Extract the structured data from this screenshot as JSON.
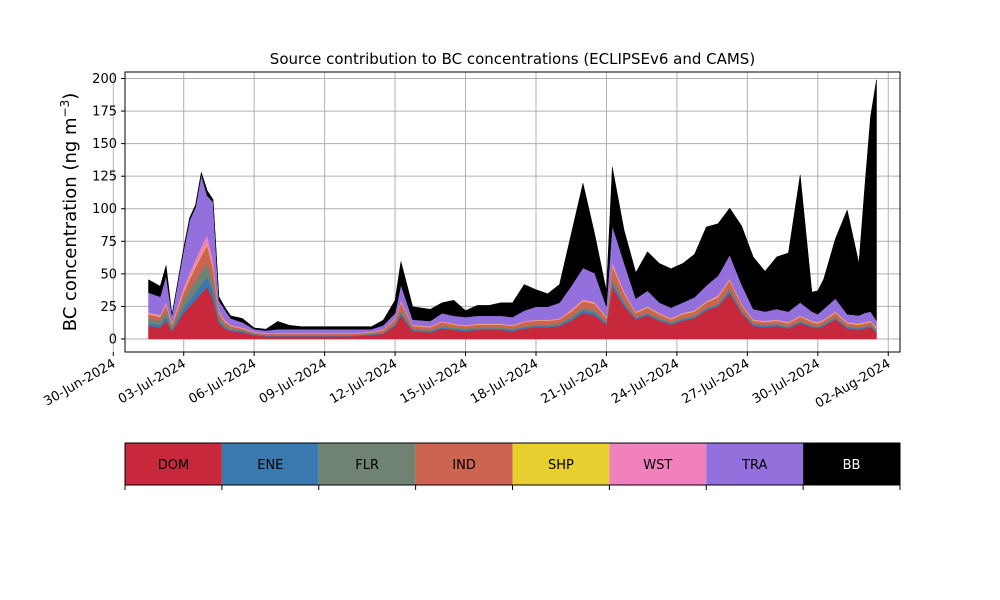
{
  "chart_data": {
    "type": "area",
    "stacked": true,
    "title": "Source contribution to BC concentrations (ECLIPSEv6 and CAMS)",
    "ylabel_main": "BC concentration (ng m",
    "ylabel_sup": "−3",
    "ylabel_close": ")",
    "xlabel": "",
    "ylim": [
      -10,
      205
    ],
    "xlim": [
      "2024-06-30T12:00",
      "2024-08-02T12:00"
    ],
    "grid": true,
    "x_ticks": [
      "30-Jun-2024",
      "03-Jul-2024",
      "06-Jul-2024",
      "09-Jul-2024",
      "12-Jul-2024",
      "15-Jul-2024",
      "18-Jul-2024",
      "21-Jul-2024",
      "24-Jul-2024",
      "27-Jul-2024",
      "30-Jul-2024",
      "02-Aug-2024"
    ],
    "y_ticks": [
      0,
      25,
      50,
      75,
      100,
      125,
      150,
      175,
      200
    ],
    "legend_placement": "below",
    "x": [
      "2024-07-01T12:00",
      "2024-07-02T00:00",
      "2024-07-02T06:00",
      "2024-07-02T12:00",
      "2024-07-03T00:00",
      "2024-07-03T06:00",
      "2024-07-03T12:00",
      "2024-07-03T18:00",
      "2024-07-04T00:00",
      "2024-07-04T06:00",
      "2024-07-04T12:00",
      "2024-07-04T18:00",
      "2024-07-05T00:00",
      "2024-07-05T12:00",
      "2024-07-06T00:00",
      "2024-07-06T12:00",
      "2024-07-07T00:00",
      "2024-07-07T12:00",
      "2024-07-08T00:00",
      "2024-07-09T00:00",
      "2024-07-10T00:00",
      "2024-07-11T00:00",
      "2024-07-11T12:00",
      "2024-07-12T00:00",
      "2024-07-12T06:00",
      "2024-07-12T18:00",
      "2024-07-13T12:00",
      "2024-07-14T00:00",
      "2024-07-14T12:00",
      "2024-07-15T00:00",
      "2024-07-15T12:00",
      "2024-07-16T00:00",
      "2024-07-16T12:00",
      "2024-07-17T00:00",
      "2024-07-17T12:00",
      "2024-07-18T00:00",
      "2024-07-18T12:00",
      "2024-07-19T00:00",
      "2024-07-19T12:00",
      "2024-07-20T00:00",
      "2024-07-20T12:00",
      "2024-07-21T00:00",
      "2024-07-21T06:00",
      "2024-07-21T18:00",
      "2024-07-22T06:00",
      "2024-07-22T18:00",
      "2024-07-23T06:00",
      "2024-07-23T18:00",
      "2024-07-24T06:00",
      "2024-07-24T18:00",
      "2024-07-25T06:00",
      "2024-07-25T18:00",
      "2024-07-26T06:00",
      "2024-07-26T18:00",
      "2024-07-27T06:00",
      "2024-07-27T18:00",
      "2024-07-28T06:00",
      "2024-07-28T18:00",
      "2024-07-29T06:00",
      "2024-07-29T18:00",
      "2024-07-30T00:00",
      "2024-07-30T06:00",
      "2024-07-30T18:00",
      "2024-07-31T06:00",
      "2024-07-31T18:00",
      "2024-08-01T00:00",
      "2024-08-01T06:00",
      "2024-08-01T12:00"
    ],
    "series": [
      {
        "name": "DOM",
        "color": "#c8283c",
        "values": [
          10,
          9,
          14,
          6,
          20,
          25,
          30,
          35,
          40,
          30,
          12,
          8,
          6,
          5,
          3,
          2,
          2,
          2,
          2,
          2,
          2,
          3,
          4,
          10,
          18,
          6,
          5,
          8,
          7,
          6,
          7,
          7,
          7,
          6,
          8,
          9,
          9,
          10,
          14,
          20,
          18,
          11,
          40,
          25,
          15,
          18,
          14,
          11,
          14,
          16,
          22,
          25,
          35,
          20,
          10,
          9,
          10,
          8,
          12,
          9,
          8,
          10,
          15,
          8,
          7,
          8,
          9,
          5
        ]
      },
      {
        "name": "ENE",
        "color": "#3a78b0",
        "values": [
          2,
          2,
          3,
          1,
          4,
          5,
          6,
          7,
          8,
          6,
          2,
          1,
          1,
          1,
          0.5,
          0.5,
          0.5,
          0.5,
          0.5,
          0.5,
          0.5,
          0.5,
          0.5,
          1,
          2,
          1,
          1,
          1,
          1,
          1,
          1,
          1,
          1,
          1,
          1,
          1,
          1,
          1,
          1.5,
          2,
          2,
          1,
          3,
          2,
          1,
          1,
          1,
          1,
          1,
          1,
          1,
          1,
          2,
          1,
          1,
          1,
          1,
          1,
          1,
          1,
          1,
          1,
          1,
          1,
          1,
          1,
          1,
          1
        ]
      },
      {
        "name": "FLR",
        "color": "#708272",
        "values": [
          4,
          3,
          5,
          2,
          6,
          8,
          9,
          10,
          10,
          8,
          3,
          2,
          1,
          1,
          0.5,
          0.5,
          0.5,
          0.5,
          0.5,
          0.5,
          0.5,
          0.5,
          0.5,
          1,
          2,
          1,
          1,
          1,
          1,
          1,
          1,
          1,
          1,
          1,
          1,
          1,
          1,
          1,
          1.5,
          2,
          2,
          1,
          3,
          2,
          1,
          1,
          1,
          1,
          1,
          1,
          1,
          1,
          2,
          1,
          1,
          1,
          1,
          1,
          1,
          1,
          1,
          1,
          1,
          1,
          1,
          1,
          1,
          1
        ]
      },
      {
        "name": "IND",
        "color": "#cd6452",
        "values": [
          3,
          3,
          4,
          2,
          6,
          8,
          10,
          12,
          14,
          10,
          3,
          2,
          2,
          1,
          1,
          1,
          1,
          1,
          1,
          1,
          1,
          1,
          2,
          3,
          6,
          2,
          2,
          3,
          2,
          2,
          2,
          2,
          2,
          2,
          3,
          3,
          3,
          3,
          4,
          5,
          5,
          3,
          10,
          6,
          3,
          4,
          3,
          2,
          3,
          3,
          4,
          5,
          6,
          4,
          2,
          2,
          2,
          2,
          3,
          2,
          2,
          2,
          3,
          2,
          2,
          2,
          2,
          1
        ]
      },
      {
        "name": "SHP",
        "color": "#e6cf2e",
        "values": [
          0.5,
          0.5,
          0.5,
          0.5,
          1,
          1,
          1,
          1,
          1,
          1,
          0.5,
          0.5,
          0.3,
          0.3,
          0.2,
          0.2,
          0.2,
          0.2,
          0.2,
          0.2,
          0.2,
          0.2,
          0.2,
          0.3,
          0.5,
          0.3,
          0.3,
          0.3,
          0.3,
          0.3,
          0.3,
          0.3,
          0.3,
          0.3,
          0.3,
          0.3,
          0.3,
          0.3,
          0.5,
          0.5,
          0.5,
          0.5,
          1,
          0.5,
          0.5,
          0.5,
          0.5,
          0.5,
          0.5,
          0.5,
          0.5,
          0.5,
          0.5,
          0.5,
          0.5,
          0.5,
          0.5,
          0.5,
          0.5,
          0.5,
          0.5,
          0.5,
          0.5,
          0.5,
          0.5,
          0.5,
          0.5,
          0.5
        ]
      },
      {
        "name": "WST",
        "color": "#f180bf",
        "values": [
          1,
          1,
          2,
          1,
          3,
          4,
          5,
          6,
          7,
          5,
          1,
          1,
          0.5,
          0.5,
          0.3,
          0.3,
          0.3,
          0.3,
          0.3,
          0.3,
          0.3,
          0.3,
          0.3,
          0.5,
          1,
          0.5,
          0.5,
          0.5,
          0.5,
          0.5,
          0.5,
          0.5,
          0.5,
          0.5,
          0.5,
          0.5,
          0.5,
          0.5,
          1,
          1,
          1,
          0.5,
          2,
          1,
          0.5,
          0.5,
          0.5,
          0.5,
          0.5,
          0.5,
          0.5,
          1,
          1,
          0.5,
          0.5,
          0.5,
          0.5,
          0.5,
          0.5,
          0.5,
          0.5,
          0.5,
          0.5,
          0.5,
          0.5,
          0.5,
          0.5,
          0.5
        ]
      },
      {
        "name": "TRA",
        "color": "#9370db",
        "values": [
          15,
          14,
          20,
          6,
          28,
          40,
          40,
          55,
          30,
          45,
          8,
          8,
          5,
          4,
          2,
          2,
          3,
          3,
          3,
          3,
          3,
          2,
          3,
          4,
          12,
          4,
          4,
          6,
          6,
          6,
          6,
          6,
          6,
          6,
          8,
          10,
          10,
          12,
          18,
          24,
          22,
          8,
          28,
          22,
          10,
          12,
          8,
          8,
          8,
          10,
          12,
          15,
          18,
          15,
          8,
          7,
          8,
          8,
          10,
          7,
          6,
          8,
          10,
          6,
          6,
          7,
          7,
          5
        ]
      },
      {
        "name": "BB",
        "color": "#000000",
        "values": [
          10,
          8,
          8,
          0,
          2,
          2,
          2,
          2,
          4,
          2,
          3,
          2,
          2,
          3,
          1,
          1,
          6,
          3,
          2,
          2,
          2,
          2,
          4,
          10,
          18,
          10,
          9,
          8,
          12,
          5,
          8,
          8,
          10,
          11,
          20,
          13,
          10,
          14,
          40,
          65,
          30,
          12,
          45,
          25,
          20,
          30,
          30,
          30,
          30,
          33,
          45,
          40,
          36,
          45,
          40,
          31,
          40,
          45,
          98,
          15,
          18,
          23,
          46,
          80,
          40,
          97,
          150,
          185
        ]
      }
    ]
  }
}
